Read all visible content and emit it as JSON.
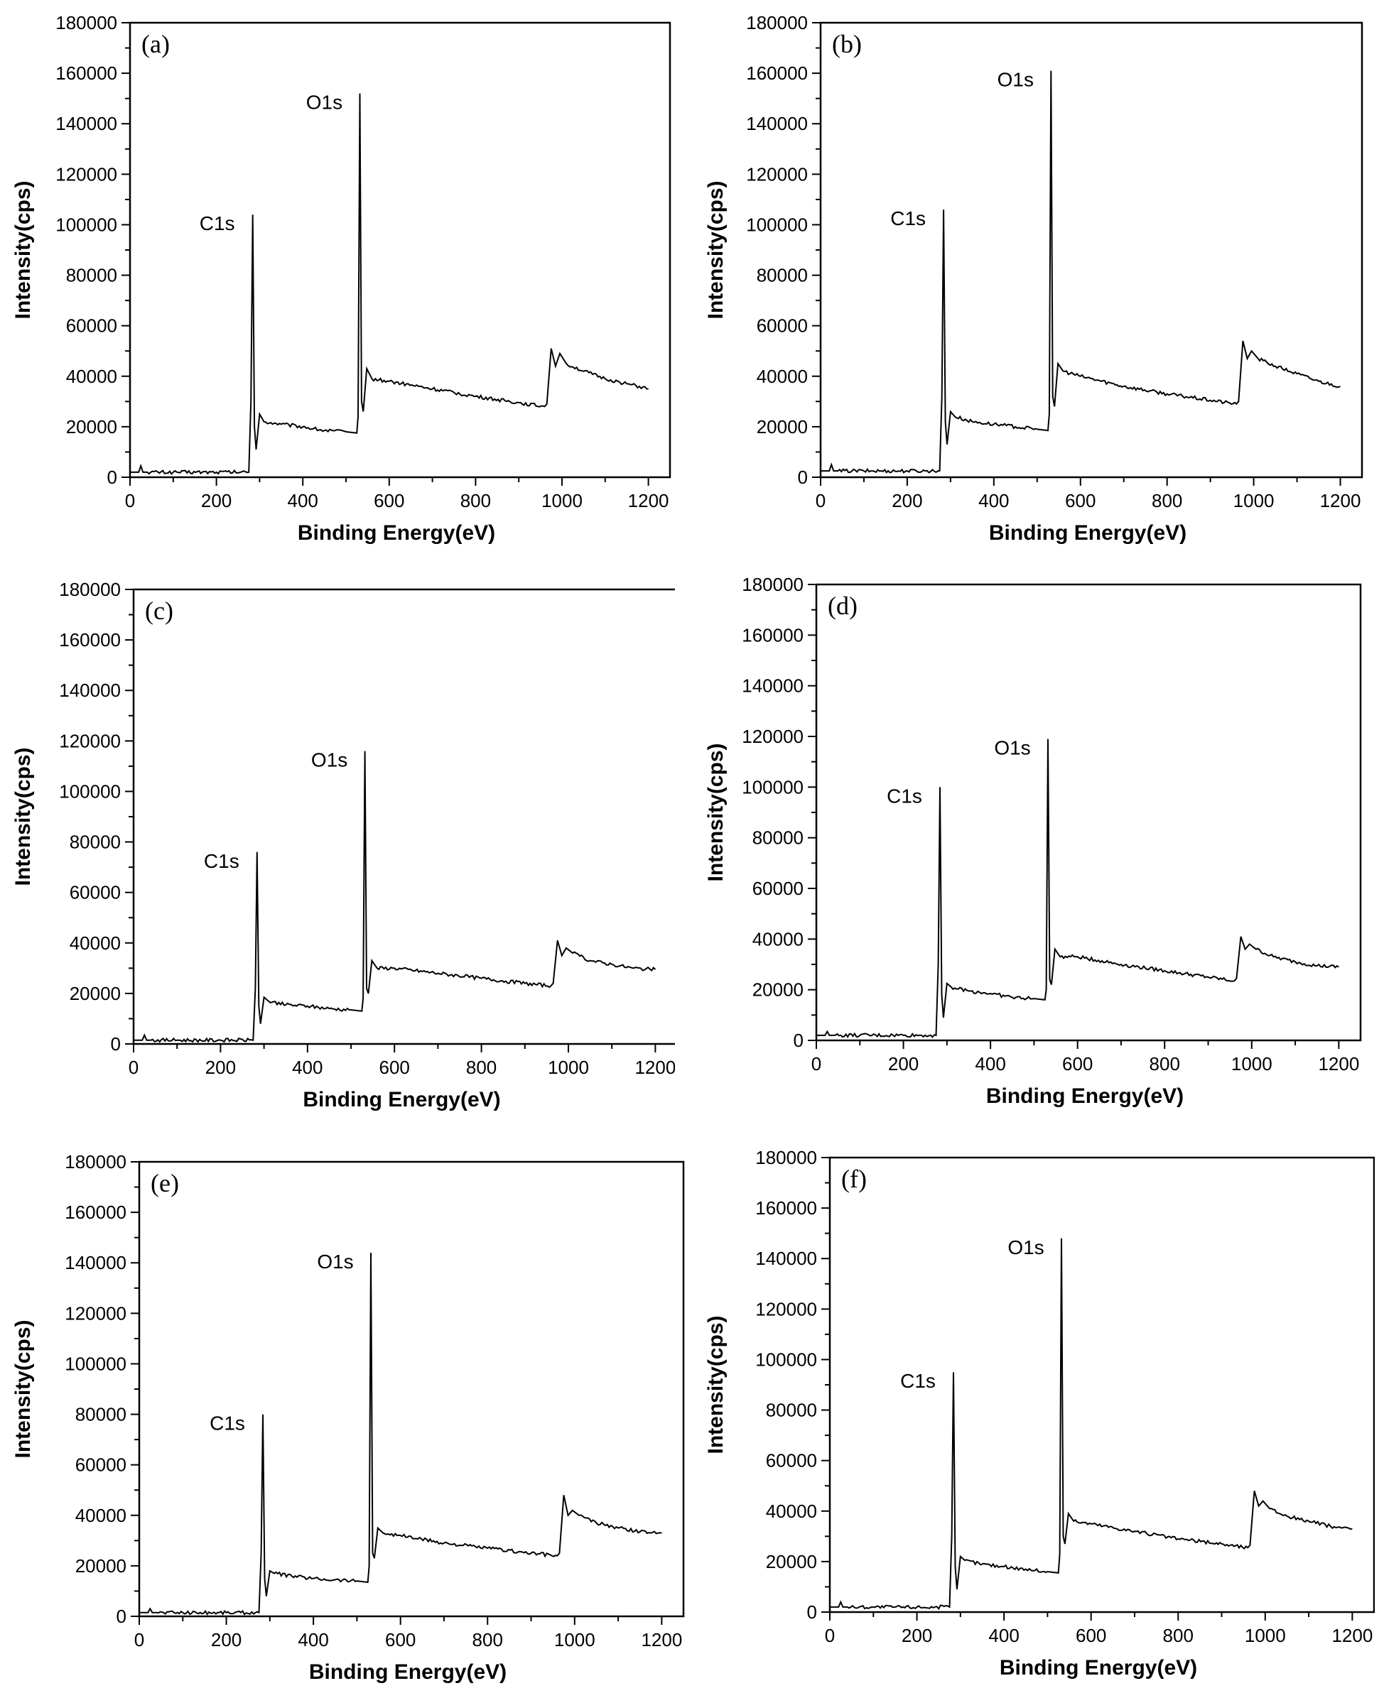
{
  "chart_data": [
    {
      "type": "line",
      "panel_label": "(a)",
      "xlabel": "Binding Energy(eV)",
      "ylabel": "Intensity(cps)",
      "xlim": [
        0,
        1250
      ],
      "ylim": [
        0,
        180000
      ],
      "x_ticks": [
        0,
        200,
        400,
        600,
        800,
        1000,
        1200
      ],
      "y_ticks": [
        0,
        20000,
        40000,
        60000,
        80000,
        100000,
        120000,
        140000,
        160000,
        180000
      ],
      "peaks": [
        {
          "label": "C1s",
          "x": 284,
          "y": 104000
        },
        {
          "label": "O1s",
          "x": 532,
          "y": 152000
        }
      ],
      "series": [
        {
          "name": "(a)",
          "x": [
            0,
            20,
            25,
            30,
            40,
            100,
            200,
            275,
            280,
            284,
            288,
            292,
            300,
            310,
            350,
            400,
            450,
            500,
            525,
            528,
            532,
            536,
            540,
            548,
            560,
            600,
            700,
            800,
            900,
            960,
            965,
            975,
            985,
            995,
            1010,
            1050,
            1100,
            1150,
            1200
          ],
          "y": [
            2000,
            2000,
            4500,
            2000,
            2000,
            2000,
            2000,
            2000,
            30000,
            104000,
            20000,
            11000,
            25000,
            22000,
            21000,
            20000,
            18500,
            18000,
            17500,
            24000,
            152000,
            30000,
            26000,
            43000,
            39000,
            38000,
            35000,
            32000,
            29500,
            28000,
            29000,
            51000,
            44000,
            49000,
            45000,
            42000,
            39000,
            37000,
            35000
          ]
        }
      ]
    },
    {
      "type": "line",
      "panel_label": "(b)",
      "xlabel": "Binding Energy(eV)",
      "ylabel": "Intensity(cps)",
      "xlim": [
        0,
        1250
      ],
      "ylim": [
        0,
        180000
      ],
      "x_ticks": [
        0,
        200,
        400,
        600,
        800,
        1000,
        1200
      ],
      "y_ticks": [
        0,
        20000,
        40000,
        60000,
        80000,
        100000,
        120000,
        140000,
        160000,
        180000
      ],
      "peaks": [
        {
          "label": "C1s",
          "x": 284,
          "y": 106000
        },
        {
          "label": "O1s",
          "x": 532,
          "y": 161000
        }
      ],
      "series": [
        {
          "name": "(b)",
          "x": [
            0,
            20,
            25,
            30,
            40,
            100,
            200,
            275,
            280,
            284,
            288,
            292,
            300,
            310,
            350,
            400,
            450,
            500,
            525,
            528,
            532,
            536,
            540,
            548,
            560,
            600,
            700,
            800,
            900,
            960,
            965,
            975,
            985,
            995,
            1010,
            1050,
            1100,
            1150,
            1200
          ],
          "y": [
            2500,
            2500,
            5000,
            2500,
            2500,
            2500,
            2500,
            2500,
            32000,
            106000,
            22000,
            13000,
            26000,
            24000,
            22000,
            21000,
            20000,
            19000,
            18500,
            25000,
            161000,
            32000,
            28000,
            45000,
            42000,
            40000,
            36000,
            33000,
            30500,
            29000,
            30000,
            54000,
            47000,
            50000,
            47000,
            44000,
            41000,
            38000,
            36000
          ]
        }
      ]
    },
    {
      "type": "line",
      "panel_label": "(c)",
      "xlabel": "Binding Energy(eV)",
      "ylabel": "Intensity(cps)",
      "xlim": [
        0,
        1250
      ],
      "ylim": [
        0,
        180000
      ],
      "x_ticks": [
        0,
        200,
        400,
        600,
        800,
        1000,
        1200
      ],
      "y_ticks": [
        0,
        20000,
        40000,
        60000,
        80000,
        100000,
        120000,
        140000,
        160000,
        180000
      ],
      "peaks": [
        {
          "label": "C1s",
          "x": 284,
          "y": 76000
        },
        {
          "label": "O1s",
          "x": 532,
          "y": 116000
        }
      ],
      "series": [
        {
          "name": "(c)",
          "x": [
            0,
            20,
            25,
            30,
            40,
            100,
            200,
            275,
            280,
            284,
            288,
            292,
            300,
            310,
            350,
            400,
            450,
            500,
            525,
            528,
            532,
            536,
            540,
            548,
            560,
            600,
            700,
            800,
            900,
            960,
            965,
            975,
            985,
            995,
            1010,
            1050,
            1100,
            1150,
            1200
          ],
          "y": [
            1500,
            1500,
            3500,
            1500,
            1500,
            1500,
            1500,
            1500,
            22000,
            76000,
            15000,
            8000,
            18500,
            17000,
            15500,
            15000,
            14000,
            13500,
            13000,
            18000,
            116000,
            22000,
            20000,
            33000,
            30000,
            30000,
            28000,
            26000,
            24000,
            23000,
            24000,
            41000,
            35000,
            38000,
            36000,
            33000,
            31500,
            30000,
            29500
          ]
        }
      ]
    },
    {
      "type": "line",
      "panel_label": "(d)",
      "xlabel": "Binding Energy(eV)",
      "ylabel": "Intensity(cps)",
      "xlim": [
        0,
        1250
      ],
      "ylim": [
        0,
        180000
      ],
      "x_ticks": [
        0,
        200,
        400,
        600,
        800,
        1000,
        1200
      ],
      "y_ticks": [
        0,
        20000,
        40000,
        60000,
        80000,
        100000,
        120000,
        140000,
        160000,
        180000
      ],
      "peaks": [
        {
          "label": "C1s",
          "x": 284,
          "y": 100000
        },
        {
          "label": "O1s",
          "x": 532,
          "y": 119000
        }
      ],
      "series": [
        {
          "name": "(d)",
          "x": [
            0,
            20,
            25,
            30,
            40,
            100,
            200,
            275,
            280,
            284,
            288,
            292,
            300,
            310,
            350,
            400,
            450,
            500,
            525,
            528,
            532,
            536,
            540,
            548,
            560,
            600,
            700,
            800,
            900,
            960,
            965,
            975,
            985,
            995,
            1010,
            1050,
            1100,
            1150,
            1200
          ],
          "y": [
            2000,
            2000,
            3500,
            2000,
            2000,
            2000,
            2000,
            2000,
            30000,
            100000,
            18000,
            9000,
            22500,
            21000,
            19500,
            18500,
            17000,
            16500,
            16000,
            20000,
            119000,
            24000,
            22000,
            36000,
            33000,
            33000,
            30000,
            27500,
            25000,
            23500,
            24500,
            41000,
            36000,
            38000,
            36000,
            33000,
            31000,
            29500,
            29000
          ]
        }
      ]
    },
    {
      "type": "line",
      "panel_label": "(e)",
      "xlabel": "Binding Energy(eV)",
      "ylabel": "Intensity(cps)",
      "xlim": [
        0,
        1250
      ],
      "ylim": [
        0,
        180000
      ],
      "x_ticks": [
        0,
        200,
        400,
        600,
        800,
        1000,
        1200
      ],
      "y_ticks": [
        0,
        20000,
        40000,
        60000,
        80000,
        100000,
        120000,
        140000,
        160000,
        180000
      ],
      "peaks": [
        {
          "label": "C1s",
          "x": 284,
          "y": 80000
        },
        {
          "label": "O1s",
          "x": 532,
          "y": 144000
        }
      ],
      "series": [
        {
          "name": "(e)",
          "x": [
            0,
            20,
            25,
            30,
            40,
            100,
            200,
            275,
            280,
            284,
            288,
            292,
            300,
            310,
            350,
            400,
            450,
            500,
            525,
            528,
            532,
            536,
            540,
            548,
            560,
            600,
            700,
            800,
            900,
            960,
            965,
            975,
            985,
            995,
            1010,
            1050,
            1100,
            1150,
            1200
          ],
          "y": [
            1500,
            1500,
            3000,
            1500,
            1500,
            1500,
            1500,
            1500,
            25000,
            80000,
            15000,
            8000,
            18000,
            17000,
            16000,
            15000,
            14500,
            14000,
            13500,
            20000,
            144000,
            25000,
            23000,
            35000,
            33000,
            32000,
            29000,
            27000,
            25000,
            24000,
            25000,
            48000,
            40000,
            42000,
            40000,
            37000,
            35000,
            33500,
            33000
          ]
        }
      ]
    },
    {
      "type": "line",
      "panel_label": "(f)",
      "xlabel": "Binding Energy(eV)",
      "ylabel": "Intensity(cps)",
      "xlim": [
        0,
        1250
      ],
      "ylim": [
        0,
        180000
      ],
      "x_ticks": [
        0,
        200,
        400,
        600,
        800,
        1000,
        1200
      ],
      "y_ticks": [
        0,
        20000,
        40000,
        60000,
        80000,
        100000,
        120000,
        140000,
        160000,
        180000
      ],
      "peaks": [
        {
          "label": "C1s",
          "x": 284,
          "y": 95000
        },
        {
          "label": "O1s",
          "x": 532,
          "y": 148000
        }
      ],
      "series": [
        {
          "name": "(f)",
          "x": [
            0,
            20,
            25,
            30,
            40,
            100,
            200,
            275,
            280,
            284,
            288,
            292,
            300,
            310,
            350,
            400,
            450,
            500,
            525,
            528,
            532,
            536,
            540,
            548,
            560,
            600,
            700,
            800,
            900,
            960,
            965,
            975,
            985,
            995,
            1010,
            1050,
            1100,
            1150,
            1200
          ],
          "y": [
            2000,
            2000,
            4000,
            2000,
            2000,
            2000,
            2000,
            2000,
            30000,
            95000,
            18000,
            9000,
            22000,
            20500,
            19000,
            18000,
            17000,
            16000,
            15500,
            23000,
            148000,
            30000,
            27000,
            39000,
            36000,
            35000,
            32000,
            29000,
            27000,
            25500,
            26500,
            48000,
            42000,
            44000,
            41000,
            38000,
            36000,
            34000,
            33000
          ]
        }
      ]
    }
  ]
}
